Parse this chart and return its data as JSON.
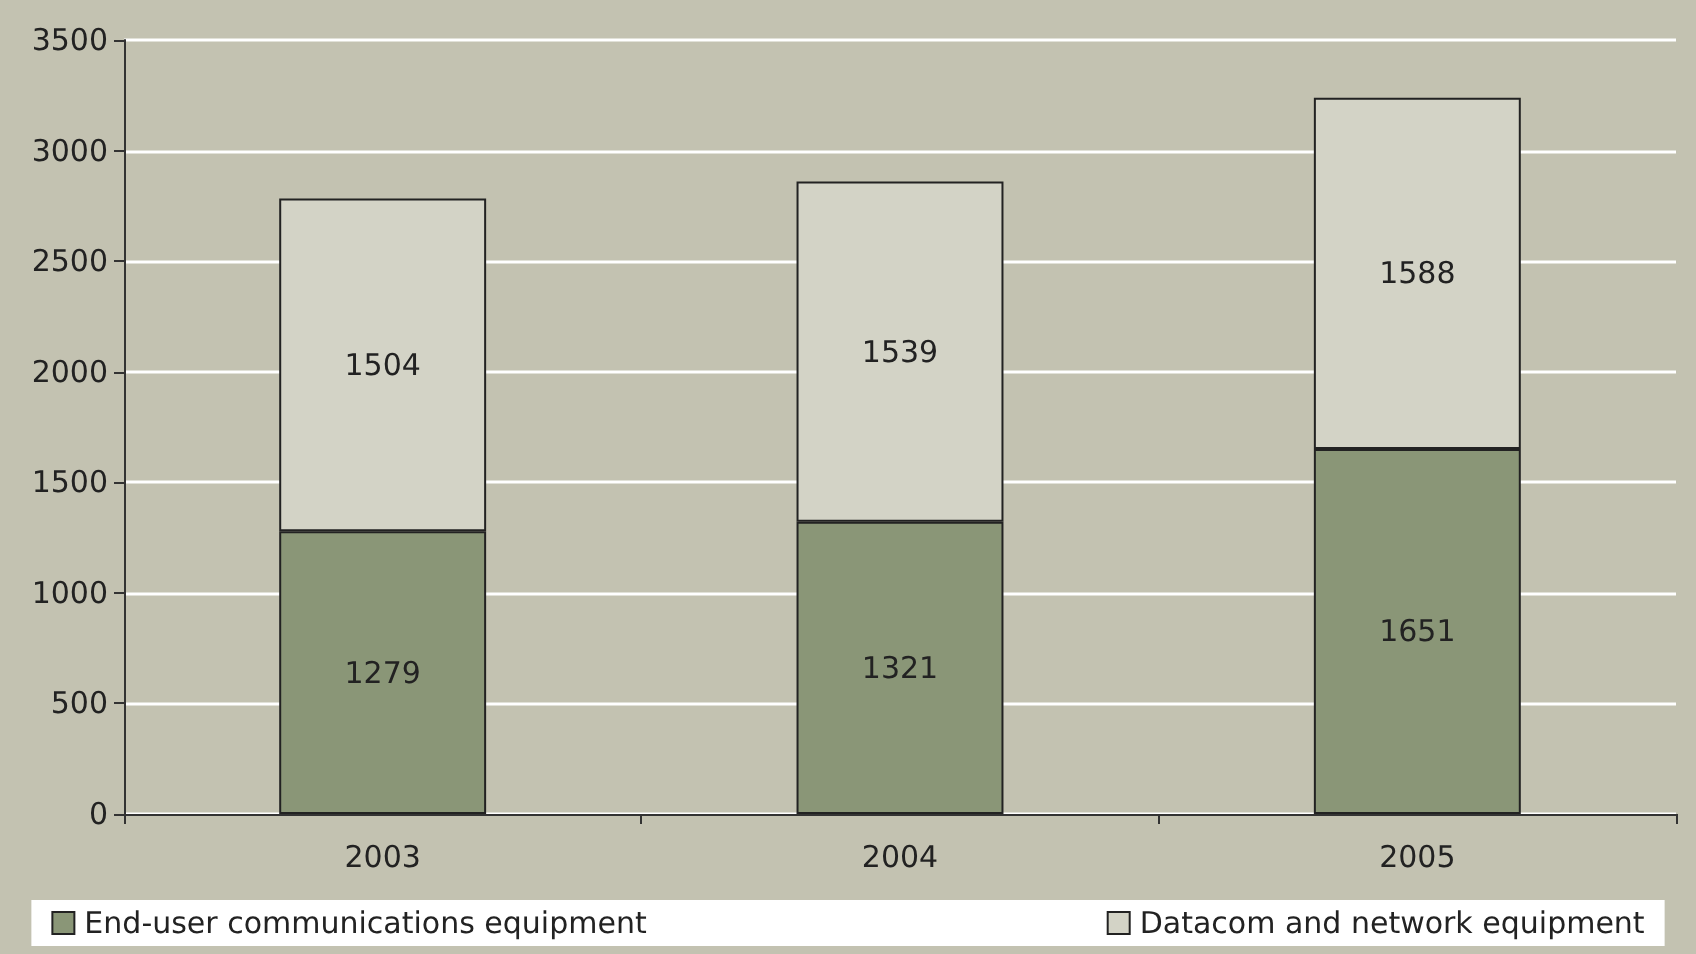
{
  "chart_data": {
    "type": "bar",
    "stacked": true,
    "categories": [
      "2003",
      "2004",
      "2005"
    ],
    "series": [
      {
        "name": "End-user communications equipment",
        "color": "#8a9677",
        "values": [
          1279,
          1321,
          1651
        ]
      },
      {
        "name": "Datacom and network equipment",
        "color": "#d3d3c6",
        "values": [
          1504,
          1539,
          1588
        ]
      }
    ],
    "ylim": [
      0,
      3500
    ],
    "yticks": [
      0,
      500,
      1000,
      1500,
      2000,
      2500,
      3000,
      3500
    ],
    "grid": "y",
    "legend": "bottom",
    "data_labels": true
  }
}
